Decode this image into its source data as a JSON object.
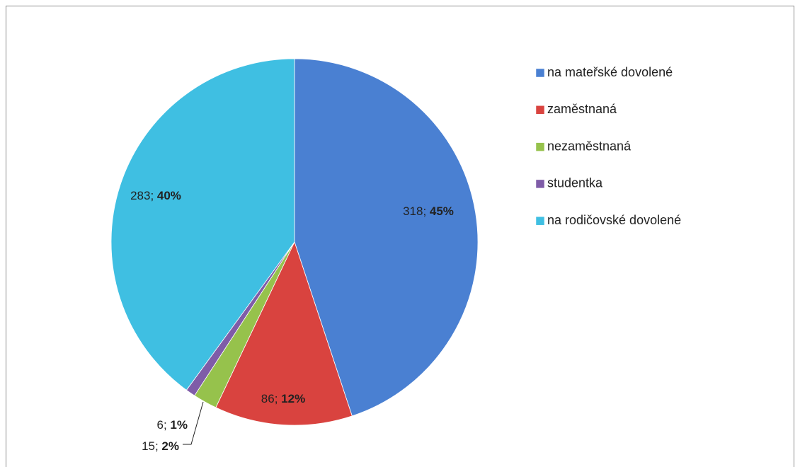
{
  "chart_data": {
    "type": "pie",
    "categories": [
      "na mateřské dovolené",
      "zaměstnaná",
      "nezaměstnaná",
      "studentka",
      "na rodičovské dovolené"
    ],
    "values": [
      318,
      86,
      15,
      6,
      283
    ],
    "value_labels": [
      "318; 45%",
      "86; 12%",
      "15; 2%",
      "6; 1%",
      "283; 40%"
    ],
    "colors": [
      "#4a80d2",
      "#d9433f",
      "#96c24c",
      "#7f5ca8",
      "#3fbfe2"
    ],
    "legend": "right"
  }
}
